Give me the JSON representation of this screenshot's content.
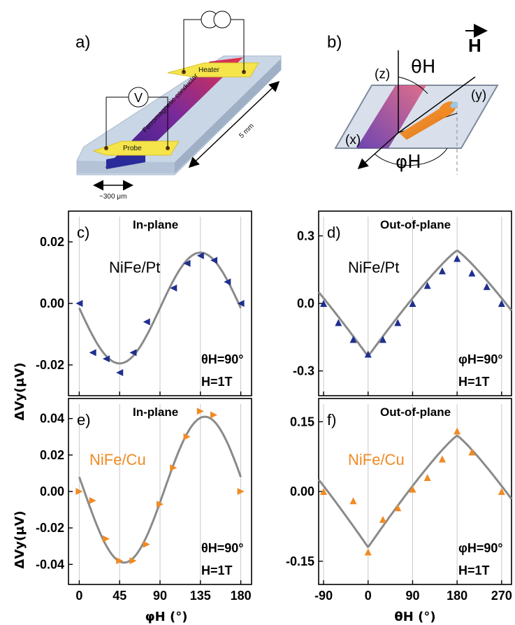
{
  "figure": {
    "panel_a": {
      "letter": "a)",
      "heater": "Heater",
      "probe": "Probe",
      "conductor": "Ferromagnetic conductor",
      "voltmeter": "V",
      "width": "~300 μm",
      "length": "5 mm"
    },
    "panel_b": {
      "letter": "b)",
      "z": "(z)",
      "y": "(y)",
      "x": "(x)",
      "theta": "θH",
      "phi": "φH",
      "field": "H"
    },
    "ylabel": "ΔVy(μV)",
    "xlabel_left": "φH (°)",
    "xlabel_right": "θH (°)"
  },
  "colors": {
    "line": "#8a8a8a",
    "pt_marker": "#1f2f8f",
    "cu_marker": "#f08a24",
    "cu_text": "#f08a24"
  },
  "chart_data": [
    {
      "id": "c",
      "type": "line",
      "letter": "c)",
      "title": "In-plane",
      "sample": "NiFe/Pt",
      "cond1": "θH=90°",
      "cond2": "H=1T",
      "xlim": [
        -12,
        192
      ],
      "ylim": [
        -0.03,
        0.03
      ],
      "xticks": [
        0,
        45,
        90,
        135,
        180
      ],
      "yticks": [
        -0.02,
        0.0,
        0.02
      ],
      "ytick_labels": [
        "-0.02",
        "0.00",
        "0.02"
      ],
      "fit": {
        "kind": "sine",
        "offset": -0.0015,
        "amplitude": 0.018,
        "peak_x": 135
      },
      "marker": "left",
      "points": [
        [
          0,
          0.0
        ],
        [
          15,
          -0.016
        ],
        [
          30,
          -0.018
        ],
        [
          45,
          -0.0225
        ],
        [
          60,
          -0.016
        ],
        [
          75,
          -0.006
        ],
        [
          105,
          0.005
        ],
        [
          120,
          0.013
        ],
        [
          135,
          0.0155
        ],
        [
          150,
          0.014
        ],
        [
          165,
          0.007
        ],
        [
          180,
          0.0
        ]
      ]
    },
    {
      "id": "d",
      "type": "line",
      "letter": "d)",
      "title": "Out-of-plane",
      "sample": "NiFe/Pt",
      "cond1": "φH=90°",
      "cond2": "H=1T",
      "xlim": [
        -100,
        290
      ],
      "ylim": [
        -0.41,
        0.41
      ],
      "xticks": [
        -90,
        0,
        90,
        180,
        270
      ],
      "yticks": [
        -0.3,
        0.0,
        0.3
      ],
      "ytick_labels": [
        "-0.3",
        "0.0",
        "0.3"
      ],
      "fit": {
        "kind": "cusp",
        "min": -0.235,
        "max": 0.235,
        "min_x": 0,
        "max_x": 180
      },
      "marker": "up",
      "points": [
        [
          -90,
          0.0
        ],
        [
          -60,
          -0.085
        ],
        [
          -30,
          -0.16
        ],
        [
          0,
          -0.225
        ],
        [
          30,
          -0.16
        ],
        [
          60,
          -0.085
        ],
        [
          90,
          0.0
        ],
        [
          120,
          0.08
        ],
        [
          150,
          0.145
        ],
        [
          180,
          0.2
        ],
        [
          210,
          0.135
        ],
        [
          240,
          0.075
        ],
        [
          270,
          0.0
        ]
      ]
    },
    {
      "id": "e",
      "type": "line",
      "letter": "e)",
      "title": "In-plane",
      "sample": "NiFe/Cu",
      "cond1": "θH=90°",
      "cond2": "H=1T",
      "xlim": [
        -12,
        192
      ],
      "ylim": [
        -0.051,
        0.051
      ],
      "xticks": [
        0,
        45,
        90,
        135,
        180
      ],
      "yticks": [
        -0.04,
        -0.02,
        0.0,
        0.02,
        0.04
      ],
      "ytick_labels": [
        "-0.04",
        "-0.02",
        "0.00",
        "0.02",
        "0.04"
      ],
      "fit": {
        "kind": "sine",
        "offset": 0.001,
        "amplitude": 0.04,
        "peak_x": 140
      },
      "marker": "right",
      "points": [
        [
          0,
          0.0
        ],
        [
          15,
          -0.005
        ],
        [
          30,
          -0.026
        ],
        [
          45,
          -0.038
        ],
        [
          60,
          -0.038
        ],
        [
          75,
          -0.029
        ],
        [
          90,
          -0.007
        ],
        [
          105,
          0.013
        ],
        [
          120,
          0.03
        ],
        [
          135,
          0.044
        ],
        [
          150,
          0.042
        ],
        [
          180,
          0.0
        ]
      ]
    },
    {
      "id": "f",
      "type": "line",
      "letter": "f)",
      "title": "Out-of-plane",
      "sample": "NiFe/Cu",
      "cond1": "φH=90°",
      "cond2": "H=1T",
      "xlim": [
        -100,
        290
      ],
      "ylim": [
        -0.2,
        0.2
      ],
      "xticks": [
        -90,
        0,
        90,
        180,
        270
      ],
      "yticks": [
        -0.15,
        0.0,
        0.15
      ],
      "ytick_labels": [
        "-0.15",
        "0.00",
        "0.15"
      ],
      "fit": {
        "kind": "cusp",
        "min": -0.12,
        "max": 0.12,
        "min_x": 0,
        "max_x": 180
      },
      "marker": "up",
      "points": [
        [
          -90,
          0.0
        ],
        [
          -30,
          -0.02
        ],
        [
          0,
          -0.13
        ],
        [
          30,
          -0.06
        ],
        [
          60,
          -0.035
        ],
        [
          90,
          0.005
        ],
        [
          120,
          0.03
        ],
        [
          150,
          0.07
        ],
        [
          180,
          0.13
        ],
        [
          210,
          0.085
        ],
        [
          270,
          0.0
        ]
      ]
    }
  ]
}
